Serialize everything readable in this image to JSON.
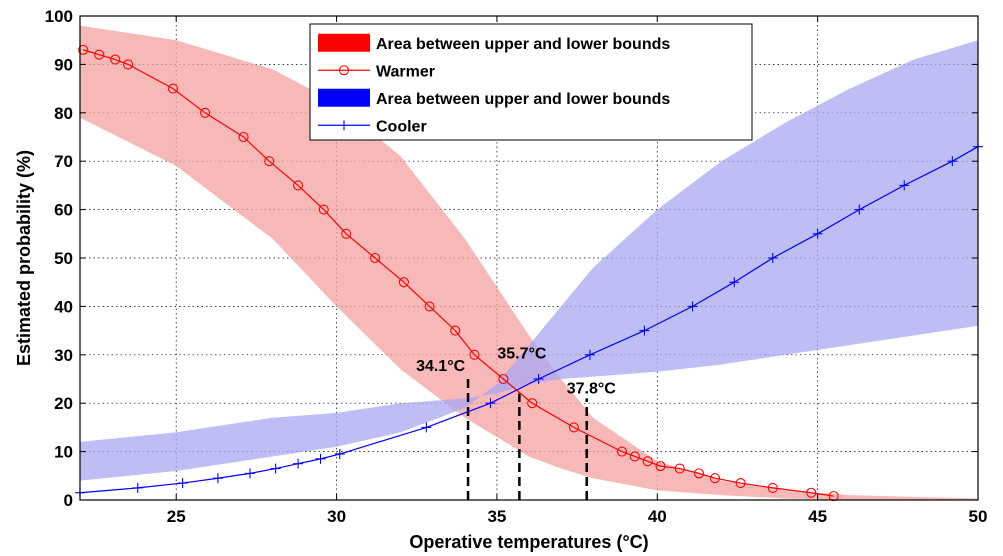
{
  "chart_data": {
    "type": "line",
    "xlabel": "Operative temperatures (°C)",
    "ylabel": "Estimated probability (%)",
    "xlim": [
      22,
      50
    ],
    "ylim": [
      0,
      100
    ],
    "xticks": [
      25,
      30,
      35,
      40,
      45,
      50
    ],
    "yticks": [
      0,
      10,
      20,
      30,
      40,
      50,
      60,
      70,
      80,
      90,
      100
    ],
    "grid": true,
    "legend_position": "top-center",
    "legend": [
      {
        "label": "Area between upper and lower bounds",
        "kind": "area",
        "color": "#ff0000"
      },
      {
        "label": "Warmer",
        "kind": "line-circle",
        "color": "#ff0000"
      },
      {
        "label": "Area between upper and lower bounds",
        "kind": "area",
        "color": "#0000ff"
      },
      {
        "label": "Cooler",
        "kind": "line-plus",
        "color": "#0000ff"
      }
    ],
    "bands": [
      {
        "series": "Warmer",
        "color": "#f4a0a0",
        "upper": [
          [
            22,
            98
          ],
          [
            25,
            95
          ],
          [
            28,
            89
          ],
          [
            30,
            82
          ],
          [
            32,
            71
          ],
          [
            34,
            54
          ],
          [
            35,
            44
          ],
          [
            36,
            34
          ],
          [
            37,
            25
          ],
          [
            38,
            17
          ],
          [
            40,
            8
          ],
          [
            42,
            4
          ],
          [
            44,
            2
          ],
          [
            46,
            1
          ],
          [
            50,
            0.3
          ]
        ],
        "lower": [
          [
            22,
            79
          ],
          [
            25,
            69
          ],
          [
            28,
            54
          ],
          [
            30,
            40
          ],
          [
            32,
            27
          ],
          [
            34,
            17
          ],
          [
            35,
            13
          ],
          [
            36,
            9
          ],
          [
            37,
            6.5
          ],
          [
            38,
            4.5
          ],
          [
            40,
            2
          ],
          [
            42,
            1
          ],
          [
            44,
            0.3
          ],
          [
            46,
            0
          ],
          [
            50,
            0
          ]
        ]
      },
      {
        "series": "Cooler",
        "color": "#a8a8f2",
        "upper": [
          [
            22,
            4
          ],
          [
            25,
            6
          ],
          [
            28,
            9
          ],
          [
            30,
            11
          ],
          [
            32,
            14
          ],
          [
            34,
            19
          ],
          [
            35,
            24
          ],
          [
            36,
            32
          ],
          [
            37,
            40
          ],
          [
            38,
            48
          ],
          [
            40,
            60
          ],
          [
            42,
            70
          ],
          [
            44,
            78
          ],
          [
            46,
            85
          ],
          [
            48,
            91
          ],
          [
            50,
            95
          ]
        ],
        "lower": [
          [
            22,
            12
          ],
          [
            25,
            14
          ],
          [
            28,
            17
          ],
          [
            30,
            18
          ],
          [
            32,
            20
          ],
          [
            34,
            21
          ],
          [
            35,
            22
          ],
          [
            36,
            24
          ],
          [
            37,
            25
          ],
          [
            38,
            25.5
          ],
          [
            40,
            26.5
          ],
          [
            42,
            28
          ],
          [
            44,
            30
          ],
          [
            46,
            32
          ],
          [
            48,
            34
          ],
          [
            50,
            36
          ]
        ]
      }
    ],
    "series": [
      {
        "name": "Warmer",
        "color": "#ff0000",
        "marker": "circle",
        "x": [
          22.1,
          22.6,
          23.1,
          23.5,
          24.9,
          25.9,
          27.1,
          27.9,
          28.8,
          29.6,
          30.3,
          31.2,
          32.1,
          32.9,
          33.7,
          34.3,
          35.2,
          36.1,
          37.4,
          38.9,
          39.3,
          39.7,
          40.1,
          40.7,
          41.3,
          41.8,
          42.6,
          43.6,
          44.8,
          45.5
        ],
        "y": [
          93,
          92,
          91,
          90,
          85,
          80,
          75,
          70,
          65,
          60,
          55,
          50,
          45,
          40,
          35,
          30,
          25,
          20,
          15,
          10,
          9,
          8,
          7,
          6.5,
          5.5,
          4.5,
          3.5,
          2.5,
          1.5,
          0.8
        ]
      },
      {
        "name": "Cooler",
        "color": "#0000ff",
        "marker": "plus",
        "x": [
          22,
          23.8,
          25.2,
          26.3,
          27.3,
          28.1,
          28.8,
          29.5,
          30.1,
          32.8,
          34.8,
          36.3,
          37.9,
          39.6,
          41.1,
          42.4,
          43.6,
          45,
          46.3,
          47.7,
          49.2,
          50
        ],
        "y": [
          1.5,
          2.5,
          3.5,
          4.5,
          5.5,
          6.5,
          7.5,
          8.5,
          9.5,
          15,
          20,
          25,
          30,
          35,
          40,
          45,
          50,
          55,
          60,
          65,
          70,
          73
        ]
      }
    ],
    "annotations": [
      {
        "text": "34.1°C",
        "x": 34.1,
        "line_to_y": 25
      },
      {
        "text": "35.7°C",
        "x": 35.7,
        "line_to_y": 22
      },
      {
        "text": "37.8°C",
        "x": 37.8,
        "line_to_y": 21
      }
    ]
  }
}
